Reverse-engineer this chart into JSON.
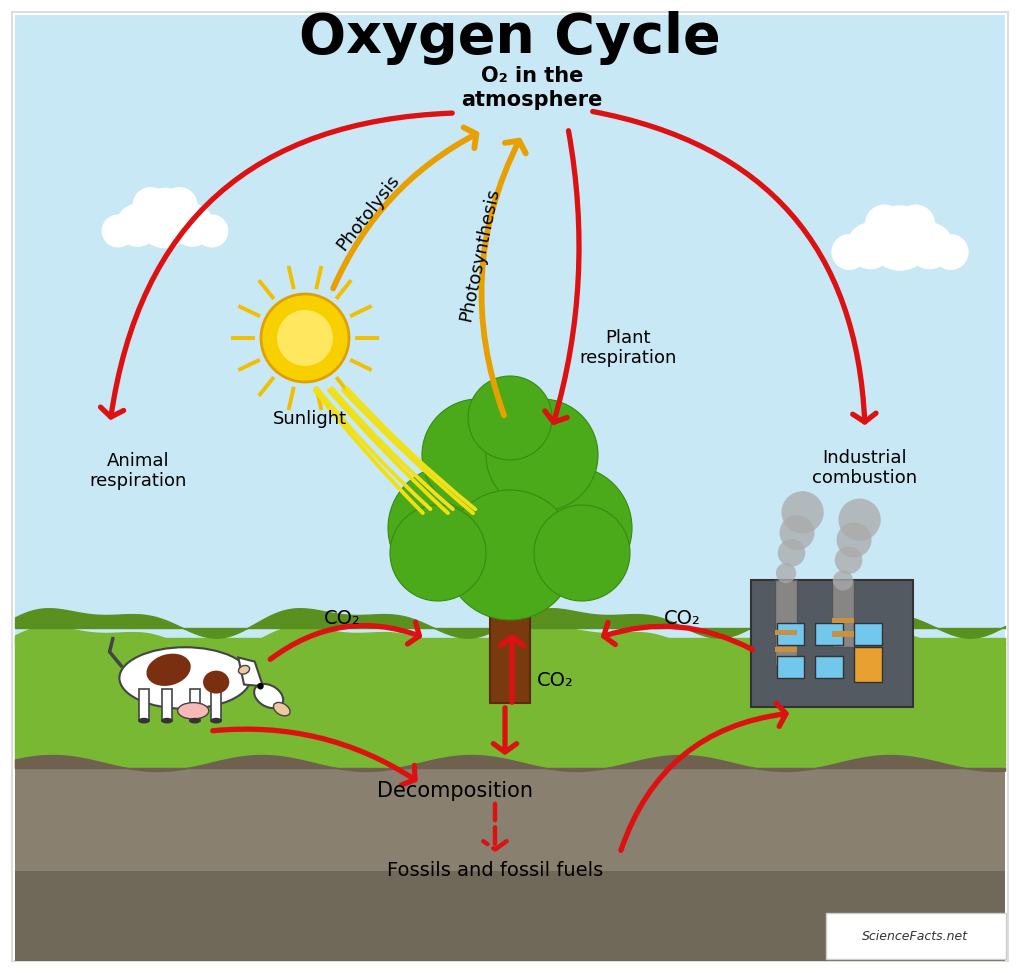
{
  "title": "Oxygen Cycle",
  "title_fontsize": 40,
  "title_fontweight": "bold",
  "bg_color": "#ffffff",
  "sky_color": "#c8e8f5",
  "ground_green": "#78b832",
  "ground_dark_green": "#5a9020",
  "soil_color": "#8a8070",
  "soil_dark": "#706858",
  "arrow_red": "#dd1111",
  "arrow_gold": "#e8a000",
  "arrow_lw": 3.8,
  "border_color": "#cccccc",
  "labels": {
    "o2_atmosphere": "O₂ in the\natmosphere",
    "photolysis": "Photolysis",
    "photosynthesis": "Photosynthesis",
    "sunlight": "Sunlight",
    "plant_respiration": "Plant\nrespiration",
    "industrial_combustion": "Industrial\ncombustion",
    "animal_respiration": "Animal\nrespiration",
    "co2_left": "CO₂",
    "co2_right": "CO₂",
    "co2_bottom": "CO₂",
    "decomposition": "Decomposition",
    "fossils": "Fossils and fossil fuels"
  },
  "watermark": "ScienceFacts.net"
}
